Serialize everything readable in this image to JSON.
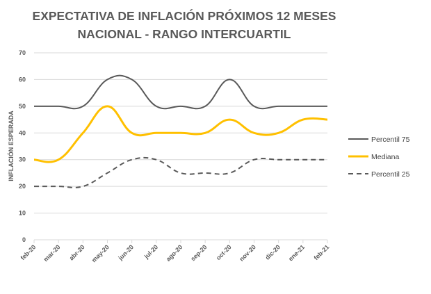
{
  "chart_data": {
    "type": "line",
    "title": [
      "EXPECTATIVA DE INFLACIÓN PRÓXIMOS 12 MESES",
      "NACIONAL - RANGO INTERCUARTIL"
    ],
    "xlabel": "",
    "ylabel": "INFLACIÓN ESPERADA",
    "ylim": [
      0,
      70
    ],
    "yticks": [
      0,
      10,
      20,
      30,
      40,
      50,
      60,
      70
    ],
    "grid": true,
    "legend_position": "right",
    "categories": [
      "feb-20",
      "mar-20",
      "abr-20",
      "may-20",
      "jun-20",
      "jul-20",
      "ago-20",
      "sep-20",
      "oct-20",
      "nov-20",
      "dic-20",
      "ene-21",
      "feb-21"
    ],
    "series": [
      {
        "name": "Percentil 75",
        "color": "#595959",
        "style": "solid",
        "values": [
          50,
          50,
          50,
          60,
          60,
          50,
          50,
          50,
          60,
          50,
          50,
          50,
          50
        ]
      },
      {
        "name": "Mediana",
        "color": "#FFC000",
        "style": "solid",
        "values": [
          30,
          30,
          40,
          50,
          40,
          40,
          40,
          40,
          45,
          40,
          40,
          45,
          45
        ]
      },
      {
        "name": "Percentil 25",
        "color": "#595959",
        "style": "dashed",
        "values": [
          20,
          20,
          20,
          25,
          30,
          30,
          25,
          25,
          25,
          30,
          30,
          30,
          30
        ]
      }
    ]
  }
}
